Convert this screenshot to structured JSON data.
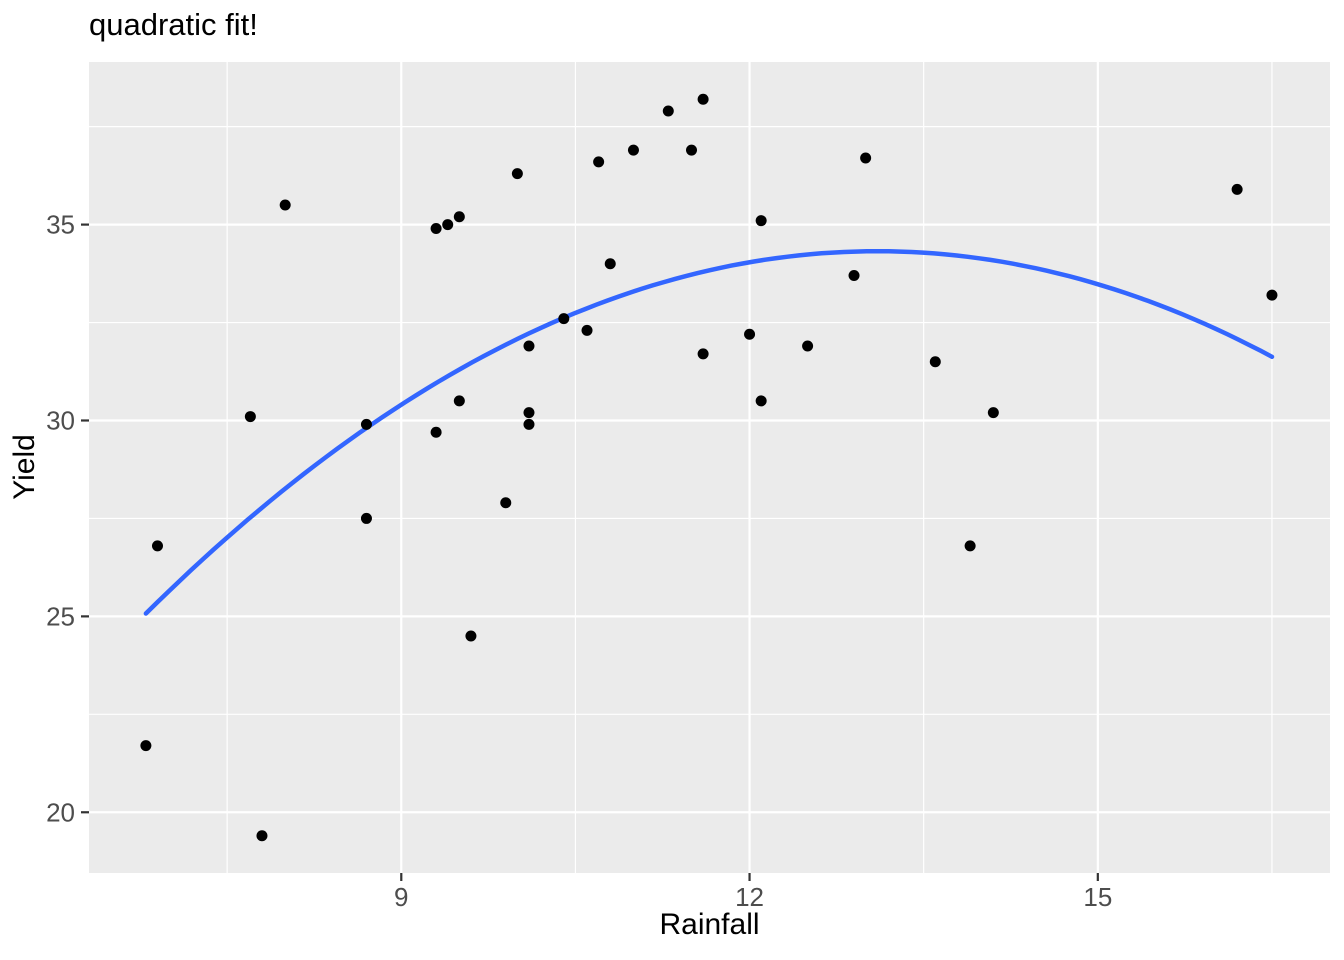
{
  "chart_data": {
    "type": "scatter",
    "title": "quadratic fit!",
    "xlabel": "Rainfall",
    "ylabel": "Yield",
    "xlim": [
      6.31,
      17.0
    ],
    "ylim": [
      18.45,
      39.15
    ],
    "grid": true,
    "legend": "none",
    "x_major_ticks": [
      9,
      12,
      15
    ],
    "x_tick_labels": [
      "9",
      "12",
      "15"
    ],
    "x_minor_gridlines": [
      7.5,
      10.5,
      13.5,
      16.5
    ],
    "y_major_ticks": [
      20,
      25,
      30,
      35
    ],
    "y_tick_labels": [
      "20",
      "25",
      "30",
      "35"
    ],
    "y_minor_gridlines": [
      22.5,
      27.5,
      32.5,
      37.5
    ],
    "points": [
      [
        6.8,
        21.7
      ],
      [
        6.9,
        26.8
      ],
      [
        7.7,
        30.1
      ],
      [
        7.8,
        19.4
      ],
      [
        8.0,
        35.5
      ],
      [
        8.7,
        29.9
      ],
      [
        8.7,
        27.5
      ],
      [
        9.3,
        34.9
      ],
      [
        9.3,
        29.7
      ],
      [
        9.4,
        35.0
      ],
      [
        9.5,
        35.2
      ],
      [
        9.5,
        30.5
      ],
      [
        9.6,
        24.5
      ],
      [
        9.9,
        27.9
      ],
      [
        10.0,
        36.3
      ],
      [
        10.1,
        31.9
      ],
      [
        10.1,
        30.2
      ],
      [
        10.1,
        29.9
      ],
      [
        10.4,
        32.6
      ],
      [
        10.6,
        32.3
      ],
      [
        10.7,
        36.6
      ],
      [
        10.8,
        34.0
      ],
      [
        11.0,
        36.9
      ],
      [
        11.3,
        37.9
      ],
      [
        11.5,
        36.9
      ],
      [
        11.6,
        38.2
      ],
      [
        11.6,
        31.7
      ],
      [
        12.0,
        32.2
      ],
      [
        12.1,
        35.1
      ],
      [
        12.1,
        30.5
      ],
      [
        12.5,
        31.9
      ],
      [
        12.9,
        33.7
      ],
      [
        13.0,
        36.7
      ],
      [
        13.6,
        31.5
      ],
      [
        13.9,
        26.8
      ],
      [
        14.1,
        30.2
      ],
      [
        16.2,
        35.9
      ],
      [
        16.5,
        33.2
      ]
    ],
    "smooth": {
      "type": "quadratic",
      "equation": "y = 34.32 - 0.233*(x - 13.1)^2",
      "coefficients": {
        "a": -0.233,
        "h": 13.1,
        "k": 34.32
      },
      "x_range": [
        6.8,
        16.5
      ],
      "color": "#3366FF"
    },
    "style": {
      "panel_background": "#EBEBEB",
      "gridline_color": "#FFFFFF",
      "point_color": "#000000",
      "tick_mark_color": "#333333",
      "tick_label_color": "#4D4D4D",
      "title_color": "#000000"
    }
  }
}
